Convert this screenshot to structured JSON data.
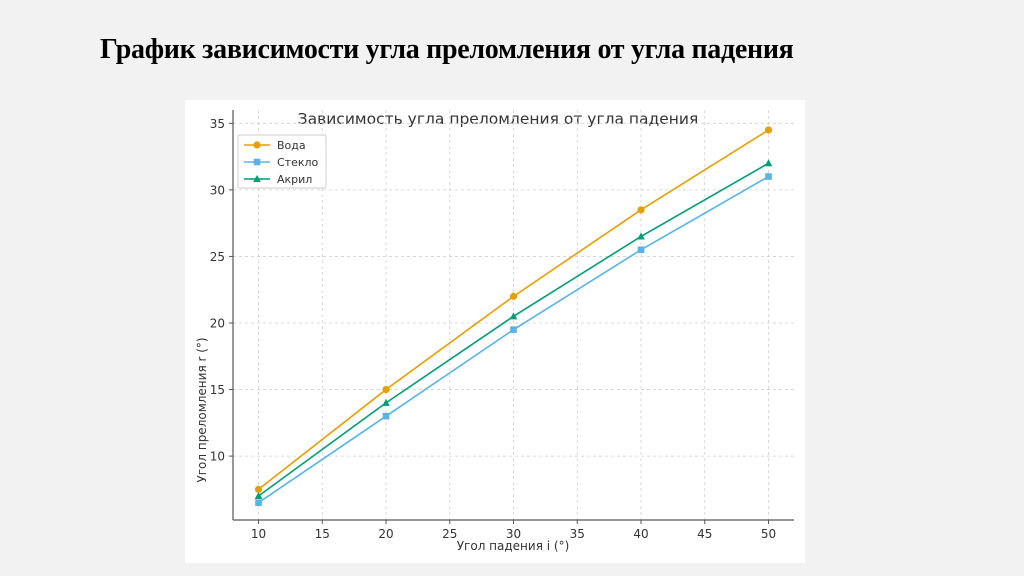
{
  "slide": {
    "title": "График зависимости угла преломления от угла падения"
  },
  "chart_data": {
    "type": "line",
    "title": "Зависимость угла преломления от угла падения",
    "xlabel": "Угол падения i (°)",
    "ylabel": "Угол преломления r (°)",
    "x": [
      10,
      20,
      30,
      40,
      50
    ],
    "xticks": [
      10,
      15,
      20,
      25,
      30,
      35,
      40,
      45,
      50
    ],
    "yticks": [
      10,
      15,
      20,
      25,
      30,
      35
    ],
    "xlim": [
      8,
      52
    ],
    "ylim": [
      5.2,
      36
    ],
    "grid": true,
    "legend_position": "upper left",
    "series": [
      {
        "name": "Вода",
        "values": [
          7.5,
          15,
          22,
          28.5,
          34.5
        ],
        "color": "#e69f00",
        "marker": "circle"
      },
      {
        "name": "Стекло",
        "values": [
          6.5,
          13,
          19.5,
          25.5,
          31
        ],
        "color": "#56b4e9",
        "marker": "square"
      },
      {
        "name": "Акрил",
        "values": [
          7,
          14,
          20.5,
          26.5,
          32
        ],
        "color": "#009e73",
        "marker": "triangle"
      }
    ]
  }
}
